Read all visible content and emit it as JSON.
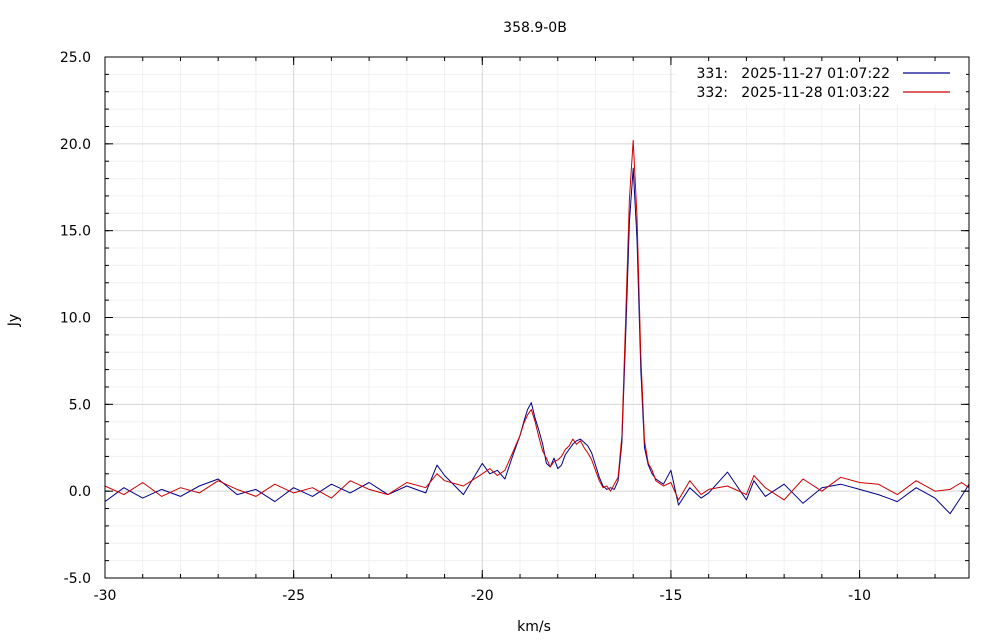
{
  "chart_data": {
    "type": "line",
    "title": "358.9-0B",
    "xlabel": "km/s",
    "ylabel": "Jy",
    "xlim": [
      -30,
      -7.1
    ],
    "ylim": [
      -5,
      25
    ],
    "xticks": [
      -30,
      -25,
      -20,
      -15,
      -10
    ],
    "xtick_labels": [
      "-30",
      "-25",
      "-20",
      "-15",
      "-10"
    ],
    "yticks": [
      -5,
      0,
      5,
      10,
      15,
      20,
      25
    ],
    "ytick_labels": [
      "-5.0",
      "0.0",
      "5.0",
      "10.0",
      "15.0",
      "20.0",
      "25.0"
    ],
    "grid": true,
    "legend_position": "top-right",
    "series": [
      {
        "name": "331:   2025-11-27 01:07:22",
        "color": "#00008b",
        "x": [
          -30,
          -29.5,
          -29,
          -28.5,
          -28,
          -27.5,
          -27,
          -26.5,
          -26,
          -25.5,
          -25,
          -24.5,
          -24,
          -23.5,
          -23,
          -22.5,
          -22,
          -21.5,
          -21.2,
          -21,
          -20.5,
          -20,
          -19.8,
          -19.6,
          -19.4,
          -19.2,
          -19,
          -18.9,
          -18.8,
          -18.7,
          -18.6,
          -18.5,
          -18.4,
          -18.3,
          -18.2,
          -18.1,
          -18,
          -17.9,
          -17.8,
          -17.7,
          -17.6,
          -17.5,
          -17.4,
          -17.3,
          -17.2,
          -17.1,
          -17,
          -16.9,
          -16.8,
          -16.7,
          -16.6,
          -16.5,
          -16.4,
          -16.3,
          -16.2,
          -16.1,
          -16.0,
          -15.9,
          -15.8,
          -15.7,
          -15.6,
          -15.5,
          -15.4,
          -15.2,
          -15,
          -14.8,
          -14.5,
          -14.2,
          -14,
          -13.5,
          -13,
          -12.8,
          -12.5,
          -12,
          -11.5,
          -11,
          -10.5,
          -10,
          -9.5,
          -9,
          -8.5,
          -8,
          -7.6,
          -7.3,
          -7.1
        ],
        "y": [
          -0.6,
          0.2,
          -0.4,
          0.1,
          -0.3,
          0.3,
          0.7,
          -0.2,
          0.1,
          -0.6,
          0.2,
          -0.3,
          0.4,
          -0.1,
          0.5,
          -0.2,
          0.3,
          -0.1,
          1.5,
          0.9,
          -0.2,
          1.6,
          1.0,
          1.2,
          0.7,
          2.0,
          3.2,
          4.0,
          4.7,
          5.1,
          4.2,
          3.5,
          2.7,
          1.6,
          1.4,
          1.9,
          1.3,
          1.5,
          2.1,
          2.4,
          2.7,
          2.9,
          3.0,
          2.8,
          2.6,
          2.2,
          1.5,
          0.8,
          0.3,
          0.1,
          0.2,
          0.1,
          0.6,
          2.8,
          9.0,
          15.5,
          18.6,
          14.5,
          7.0,
          2.5,
          1.5,
          1.0,
          0.7,
          0.4,
          1.2,
          -0.8,
          0.2,
          -0.4,
          -0.1,
          1.1,
          -0.5,
          0.6,
          -0.3,
          0.4,
          -0.7,
          0.2,
          0.4,
          0.1,
          -0.2,
          -0.6,
          0.2,
          -0.4,
          -1.3,
          -0.3,
          0.4
        ]
      },
      {
        "name": "332:   2025-11-28 01:03:22",
        "color": "#cc0000",
        "x": [
          -30,
          -29.5,
          -29,
          -28.5,
          -28,
          -27.5,
          -27,
          -26.5,
          -26,
          -25.5,
          -25,
          -24.5,
          -24,
          -23.5,
          -23,
          -22.5,
          -22,
          -21.5,
          -21.2,
          -21,
          -20.5,
          -20,
          -19.8,
          -19.6,
          -19.4,
          -19.2,
          -19,
          -18.9,
          -18.8,
          -18.7,
          -18.6,
          -18.5,
          -18.4,
          -18.3,
          -18.2,
          -18.1,
          -18,
          -17.9,
          -17.8,
          -17.7,
          -17.6,
          -17.5,
          -17.4,
          -17.3,
          -17.2,
          -17.1,
          -17,
          -16.9,
          -16.8,
          -16.7,
          -16.6,
          -16.5,
          -16.4,
          -16.3,
          -16.2,
          -16.1,
          -16.0,
          -15.9,
          -15.8,
          -15.7,
          -15.6,
          -15.5,
          -15.4,
          -15.2,
          -15,
          -14.8,
          -14.5,
          -14.2,
          -14,
          -13.5,
          -13,
          -12.8,
          -12.5,
          -12,
          -11.5,
          -11,
          -10.5,
          -10,
          -9.5,
          -9,
          -8.5,
          -8,
          -7.6,
          -7.3,
          -7.1
        ],
        "y": [
          0.3,
          -0.2,
          0.5,
          -0.3,
          0.2,
          -0.1,
          0.6,
          0.1,
          -0.3,
          0.4,
          -0.1,
          0.2,
          -0.4,
          0.6,
          0.1,
          -0.2,
          0.5,
          0.2,
          1.0,
          0.6,
          0.3,
          1.0,
          1.3,
          0.9,
          1.2,
          2.2,
          3.2,
          3.9,
          4.4,
          4.7,
          4.0,
          3.1,
          2.3,
          1.9,
          1.4,
          1.7,
          1.8,
          2.0,
          2.4,
          2.6,
          3.0,
          2.7,
          2.9,
          2.5,
          2.2,
          1.8,
          1.2,
          0.6,
          0.2,
          0.3,
          0.0,
          0.4,
          0.8,
          3.2,
          10.0,
          16.8,
          20.2,
          15.8,
          7.8,
          2.9,
          1.6,
          1.2,
          0.6,
          0.3,
          0.5,
          -0.5,
          0.6,
          -0.2,
          0.1,
          0.3,
          -0.2,
          0.9,
          0.2,
          -0.5,
          0.7,
          0.0,
          0.8,
          0.5,
          0.4,
          -0.2,
          0.6,
          0.0,
          0.1,
          0.5,
          0.2
        ]
      }
    ]
  }
}
